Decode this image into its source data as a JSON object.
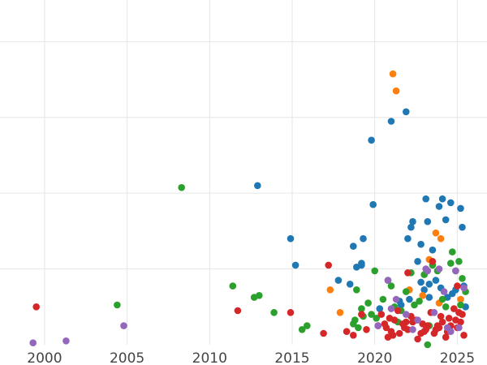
{
  "chart_data": {
    "type": "scatter",
    "title": "",
    "xlabel": "",
    "ylabel": "",
    "xlim": [
      1997.3,
      2026.8
    ],
    "ylim": [
      0,
      9.1
    ],
    "grid": true,
    "legend": "none",
    "x_ticks": [
      2000,
      2005,
      2010,
      2015,
      2020,
      2025
    ],
    "x_tick_labels": [
      "2000",
      "2005",
      "2010",
      "2015",
      "2020",
      "2025"
    ],
    "y_grid": [
      2,
      4,
      6,
      8
    ],
    "series": [
      {
        "color": "#1f77b4",
        "x": [
          2012.9,
          2014.9,
          2015.2,
          2017.8,
          2018.5,
          2018.7,
          2018.9,
          2019.2,
          2019.2,
          2019.3,
          2019.8,
          2019.9,
          2021.0,
          2021.5,
          2021.9,
          2022.0,
          2022.2,
          2022.3,
          2022.6,
          2022.8,
          2022.8,
          2023.1,
          2023.2,
          2023.3,
          2023.3,
          2023.5,
          2023.7,
          2023.9,
          2024.0,
          2024.1,
          2024.3,
          2024.4,
          2024.6,
          2024.9,
          2025.2,
          2025.3,
          2025.4,
          2025.5,
          2024.7,
          2022.1,
          2023.0,
          2021.6,
          2020.3
        ],
        "y": [
          4.2,
          2.8,
          2.1,
          1.7,
          1.6,
          2.6,
          2.05,
          2.1,
          2.15,
          2.8,
          5.4,
          3.7,
          5.9,
          1.15,
          6.15,
          2.8,
          3.1,
          3.25,
          2.2,
          1.65,
          2.65,
          3.85,
          3.25,
          1.6,
          1.25,
          2.5,
          1.7,
          3.65,
          1.5,
          3.85,
          3.3,
          1.25,
          3.75,
          1.45,
          3.6,
          3.1,
          1.55,
          1.0,
          1.35,
          1.2,
          1.45,
          1.05,
          0.95
        ]
      },
      {
        "color": "#ff7f0e",
        "x": [
          2017.3,
          2017.9,
          2021.1,
          2021.3,
          2022.1,
          2023.3,
          2023.7,
          2024.0,
          2022.9,
          2023.9,
          2025.2
        ],
        "y": [
          1.45,
          0.85,
          7.15,
          6.7,
          1.45,
          2.25,
          2.95,
          2.8,
          1.3,
          1.1,
          1.2
        ]
      },
      {
        "color": "#2ca02c",
        "x": [
          2004.4,
          2008.3,
          2011.4,
          2012.7,
          2013.0,
          2013.9,
          2015.6,
          2015.9,
          2018.7,
          2018.8,
          2019.0,
          2019.3,
          2019.6,
          2019.8,
          2020.0,
          2020.1,
          2020.8,
          2021.0,
          2021.2,
          2021.6,
          2021.9,
          2022.2,
          2022.4,
          2022.7,
          2023.0,
          2023.2,
          2023.5,
          2023.8,
          2024.1,
          2024.3,
          2024.6,
          2024.7,
          2024.9,
          2025.1,
          2025.3,
          2025.5,
          2025.2,
          2023.3,
          2020.5,
          2019.2,
          2018.9,
          2021.4
        ],
        "y": [
          1.05,
          4.15,
          1.55,
          1.25,
          1.3,
          0.85,
          0.4,
          0.5,
          0.55,
          0.65,
          0.45,
          0.75,
          1.1,
          0.8,
          1.95,
          0.7,
          1.7,
          1.55,
          1.0,
          0.9,
          1.4,
          1.9,
          1.05,
          1.15,
          1.85,
          0.0,
          2.1,
          1.95,
          1.2,
          1.0,
          2.15,
          2.45,
          1.95,
          2.2,
          1.75,
          1.4,
          1.05,
          0.5,
          1.2,
          0.95,
          1.45,
          0.6
        ]
      },
      {
        "color": "#d62728",
        "x": [
          1999.5,
          2011.7,
          2014.9,
          2016.9,
          2017.2,
          2018.3,
          2018.7,
          2019.2,
          2019.5,
          2020.2,
          2020.6,
          2020.8,
          2021.0,
          2021.2,
          2021.5,
          2021.8,
          2022.0,
          2022.3,
          2022.6,
          2022.9,
          2023.1,
          2023.4,
          2023.6,
          2023.8,
          2024.1,
          2024.3,
          2024.5,
          2024.8,
          2025.0,
          2025.2,
          2025.4,
          2020.9,
          2021.4,
          2022.0,
          2022.5,
          2023.0,
          2023.5,
          2024.0,
          2024.6,
          2025.1,
          2020.4,
          2021.7,
          2022.8,
          2023.9,
          2024.9,
          2021.1,
          2022.2,
          2023.2,
          2024.4,
          2025.3,
          2020.7,
          2021.9,
          2023.7,
          2025.0
        ],
        "y": [
          1.0,
          0.9,
          0.85,
          0.3,
          2.1,
          0.35,
          0.25,
          0.8,
          0.4,
          0.5,
          0.55,
          0.2,
          0.35,
          0.65,
          0.3,
          0.45,
          1.9,
          0.6,
          0.15,
          0.55,
          0.4,
          0.85,
          0.3,
          0.5,
          0.6,
          0.2,
          0.7,
          0.95,
          0.45,
          0.6,
          0.25,
          0.7,
          0.9,
          0.4,
          0.65,
          0.35,
          2.2,
          0.75,
          0.5,
          0.85,
          0.8,
          0.55,
          0.3,
          0.45,
          0.65,
          0.25,
          0.75,
          0.5,
          0.35,
          0.8,
          0.45,
          0.6,
          0.4,
          1.55
        ]
      },
      {
        "color": "#9467bd",
        "x": [
          1999.3,
          2001.3,
          2004.8,
          2020.8,
          2021.0,
          2021.3,
          2021.9,
          2022.3,
          2023.1,
          2023.2,
          2023.6,
          2023.9,
          2024.2,
          2024.4,
          2024.9,
          2025.1,
          2025.4,
          2020.2,
          2022.6,
          2024.6
        ],
        "y": [
          0.05,
          0.1,
          0.5,
          1.7,
          0.95,
          1.2,
          0.8,
          0.4,
          2.0,
          1.95,
          0.85,
          2.0,
          1.4,
          0.45,
          1.95,
          0.45,
          1.5,
          0.5,
          0.65,
          0.35
        ]
      }
    ]
  }
}
